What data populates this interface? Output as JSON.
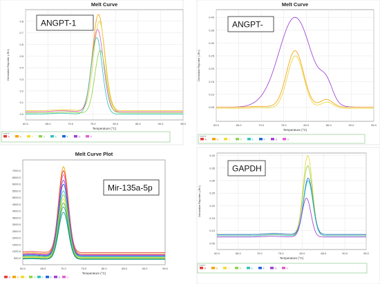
{
  "chart_data": [
    {
      "type": "line",
      "title": "Melt Curve",
      "annotation": "ANGPT-1",
      "xlabel": "Temperature (°C)",
      "ylabel": "Derivative Reporter (-Rn')",
      "xlim": [
        60,
        95
      ],
      "ylim": [
        -0.05,
        0.9
      ],
      "x_ticks": [
        "60.0",
        "65.0",
        "70.0",
        "75.0",
        "80.0",
        "85.0",
        "90.0",
        "95.0"
      ],
      "y_ticks": [
        "0.0",
        "0.1",
        "0.2",
        "0.3",
        "0.4",
        "0.5",
        "0.6",
        "0.7",
        "0.8"
      ],
      "grid": true,
      "legend": {
        "position": "bottom",
        "label": "Legend",
        "entries": [
          "A",
          "B",
          "C",
          "D",
          "E",
          "F",
          "G",
          "H"
        ],
        "colors": [
          "#e53935",
          "#f4a300",
          "#f2dc2f",
          "#8fd34a",
          "#2ec4b6",
          "#1e66d9",
          "#9b3fd1",
          "#e060c9"
        ]
      },
      "series": [
        {
          "peak": 76.2,
          "height": 0.86,
          "width": 1.35,
          "baseline": 0.02,
          "color": "#f4a300"
        },
        {
          "peak": 76.4,
          "height": 0.8,
          "width": 1.3,
          "baseline": 0.03,
          "color": "#e8d43a"
        },
        {
          "peak": 76.0,
          "height": 0.73,
          "width": 1.3,
          "baseline": 0.02,
          "color": "#e060c9"
        },
        {
          "peak": 75.8,
          "height": 0.66,
          "width": 1.25,
          "baseline": 0.0,
          "color": "#2ec4b6"
        },
        {
          "peak": 76.6,
          "height": 0.55,
          "width": 1.2,
          "baseline": 0.01,
          "color": "#8fd34a"
        }
      ]
    },
    {
      "type": "line",
      "title": "Melt Curve",
      "annotation": "ANGPT-",
      "xlabel": "Temperature (°C)",
      "ylabel": "Derivative Reporter (-Rn')",
      "xlim": [
        60,
        95
      ],
      "ylim": [
        -0.005,
        0.43
      ],
      "x_ticks": [
        "60.0",
        "65.0",
        "70.0",
        "75.0",
        "80.0",
        "85.0",
        "90.0",
        "95.0"
      ],
      "y_ticks": [
        "0.05",
        "0.10",
        "0.15",
        "0.20",
        "0.25",
        "0.30",
        "0.35",
        "0.40"
      ],
      "grid": true,
      "legend": {
        "position": "bottom",
        "label": "Legend",
        "entries": [
          "A",
          "B",
          "C",
          "D",
          "E",
          "F",
          "G",
          "H"
        ],
        "colors": [
          "#e53935",
          "#f4a300",
          "#f2dc2f",
          "#8fd34a",
          "#2ec4b6",
          "#1e66d9",
          "#9b3fd1",
          "#e060c9"
        ]
      },
      "series": [
        {
          "peak": 77.5,
          "height": 0.4,
          "width": 3.6,
          "baseline": 0.05,
          "shoulder": 0.07,
          "color": "#9b3fd1"
        },
        {
          "peak": 77.5,
          "height": 0.27,
          "width": 1.9,
          "baseline": 0.05,
          "shoulder": 0.03,
          "color": "#f4a300"
        },
        {
          "peak": 77.6,
          "height": 0.25,
          "width": 1.8,
          "baseline": 0.045,
          "shoulder": 0.025,
          "color": "#e8d43a"
        }
      ]
    },
    {
      "type": "line",
      "title": "Melt Curve Plot",
      "annotation": "Mir-135a-5p",
      "xlabel": "Temperature (°C)",
      "ylabel": "",
      "xlim": [
        60,
        95
      ],
      "ylim": [
        0,
        7800
      ],
      "x_ticks": [
        "60.0",
        "65.0",
        "70.0",
        "75.0",
        "80.0",
        "85.0",
        "90.0",
        "95.0"
      ],
      "y_ticks": [
        "500.0",
        "1000.0",
        "1500.0",
        "2000.0",
        "2500.0",
        "3000.0",
        "3500.0",
        "4000.0",
        "4500.0",
        "5000.0",
        "5500.0",
        "6000.0",
        "6500.0",
        "7000.0"
      ],
      "grid": false,
      "legend": {
        "position": "bottom",
        "label": "",
        "entries": [
          "A",
          "B",
          "C",
          "D",
          "E",
          "F",
          "G",
          "H"
        ],
        "colors": [
          "#e53935",
          "#f4a300",
          "#f2dc2f",
          "#8fd34a",
          "#2ec4b6",
          "#1e66d9",
          "#9b3fd1",
          "#e060c9"
        ]
      },
      "series": [
        {
          "peak": 70.0,
          "height": 7300,
          "width": 1.2,
          "baseline": 800,
          "color": "#f4a300"
        },
        {
          "peak": 70.0,
          "height": 7000,
          "width": 1.2,
          "baseline": 900,
          "color": "#e53935"
        },
        {
          "peak": 70.0,
          "height": 6700,
          "width": 1.2,
          "baseline": 750,
          "color": "#e060c9"
        },
        {
          "peak": 70.0,
          "height": 6300,
          "width": 1.2,
          "baseline": 700,
          "color": "#9b3fd1"
        },
        {
          "peak": 70.0,
          "height": 6000,
          "width": 1.2,
          "baseline": 650,
          "color": "#1e66d9"
        },
        {
          "peak": 70.0,
          "height": 5500,
          "width": 1.2,
          "baseline": 600,
          "color": "#2ec4b6"
        },
        {
          "peak": 70.0,
          "height": 5200,
          "width": 1.2,
          "baseline": 550,
          "color": "#8fd34a"
        },
        {
          "peak": 70.0,
          "height": 4900,
          "width": 1.2,
          "baseline": 500,
          "color": "#f2dc2f"
        },
        {
          "peak": 70.0,
          "height": 4600,
          "width": 1.2,
          "baseline": 450,
          "color": "#4caf50"
        },
        {
          "peak": 70.0,
          "height": 4300,
          "width": 1.2,
          "baseline": 400,
          "color": "#26a69a"
        },
        {
          "peak": 70.0,
          "height": 3900,
          "width": 1.2,
          "baseline": 400,
          "color": "#009688"
        }
      ]
    },
    {
      "type": "line",
      "title": "",
      "annotation": "GAPDH",
      "xlabel": "Temperature (°C)",
      "ylabel": "Derivative Reporter (-Rn')",
      "xlim": [
        60,
        95
      ],
      "ylim": [
        0.025,
        0.41
      ],
      "x_ticks": [
        "60.0",
        "65.0",
        "70.0",
        "75.0",
        "80.0",
        "85.0",
        "90.0",
        "95.0"
      ],
      "y_ticks": [
        "0.05",
        "0.10",
        "0.15",
        "0.20",
        "0.25",
        "0.30",
        "0.35",
        "0.40"
      ],
      "grid": true,
      "legend": {
        "position": "bottom",
        "label": "Legend",
        "entries": [
          "A",
          "B",
          "C",
          "D",
          "E",
          "F",
          "G",
          "H"
        ],
        "colors": [
          "#e53935",
          "#f4a300",
          "#f2dc2f",
          "#8fd34a",
          "#2ec4b6",
          "#1e66d9",
          "#9b3fd1",
          "#e060c9"
        ]
      },
      "series": [
        {
          "peak": 81.3,
          "height": 0.4,
          "width": 1.1,
          "baseline": 0.08,
          "color": "#e8d43a"
        },
        {
          "peak": 81.3,
          "height": 0.36,
          "width": 1.1,
          "baseline": 0.085,
          "color": "#8fd34a"
        },
        {
          "peak": 81.4,
          "height": 0.31,
          "width": 1.1,
          "baseline": 0.085,
          "color": "#1e66d9"
        },
        {
          "peak": 81.4,
          "height": 0.3,
          "width": 1.1,
          "baseline": 0.08,
          "color": "#2ec4b6"
        },
        {
          "peak": 81.0,
          "height": 0.23,
          "width": 1.05,
          "baseline": 0.075,
          "color": "#9b3fd1"
        }
      ]
    }
  ]
}
